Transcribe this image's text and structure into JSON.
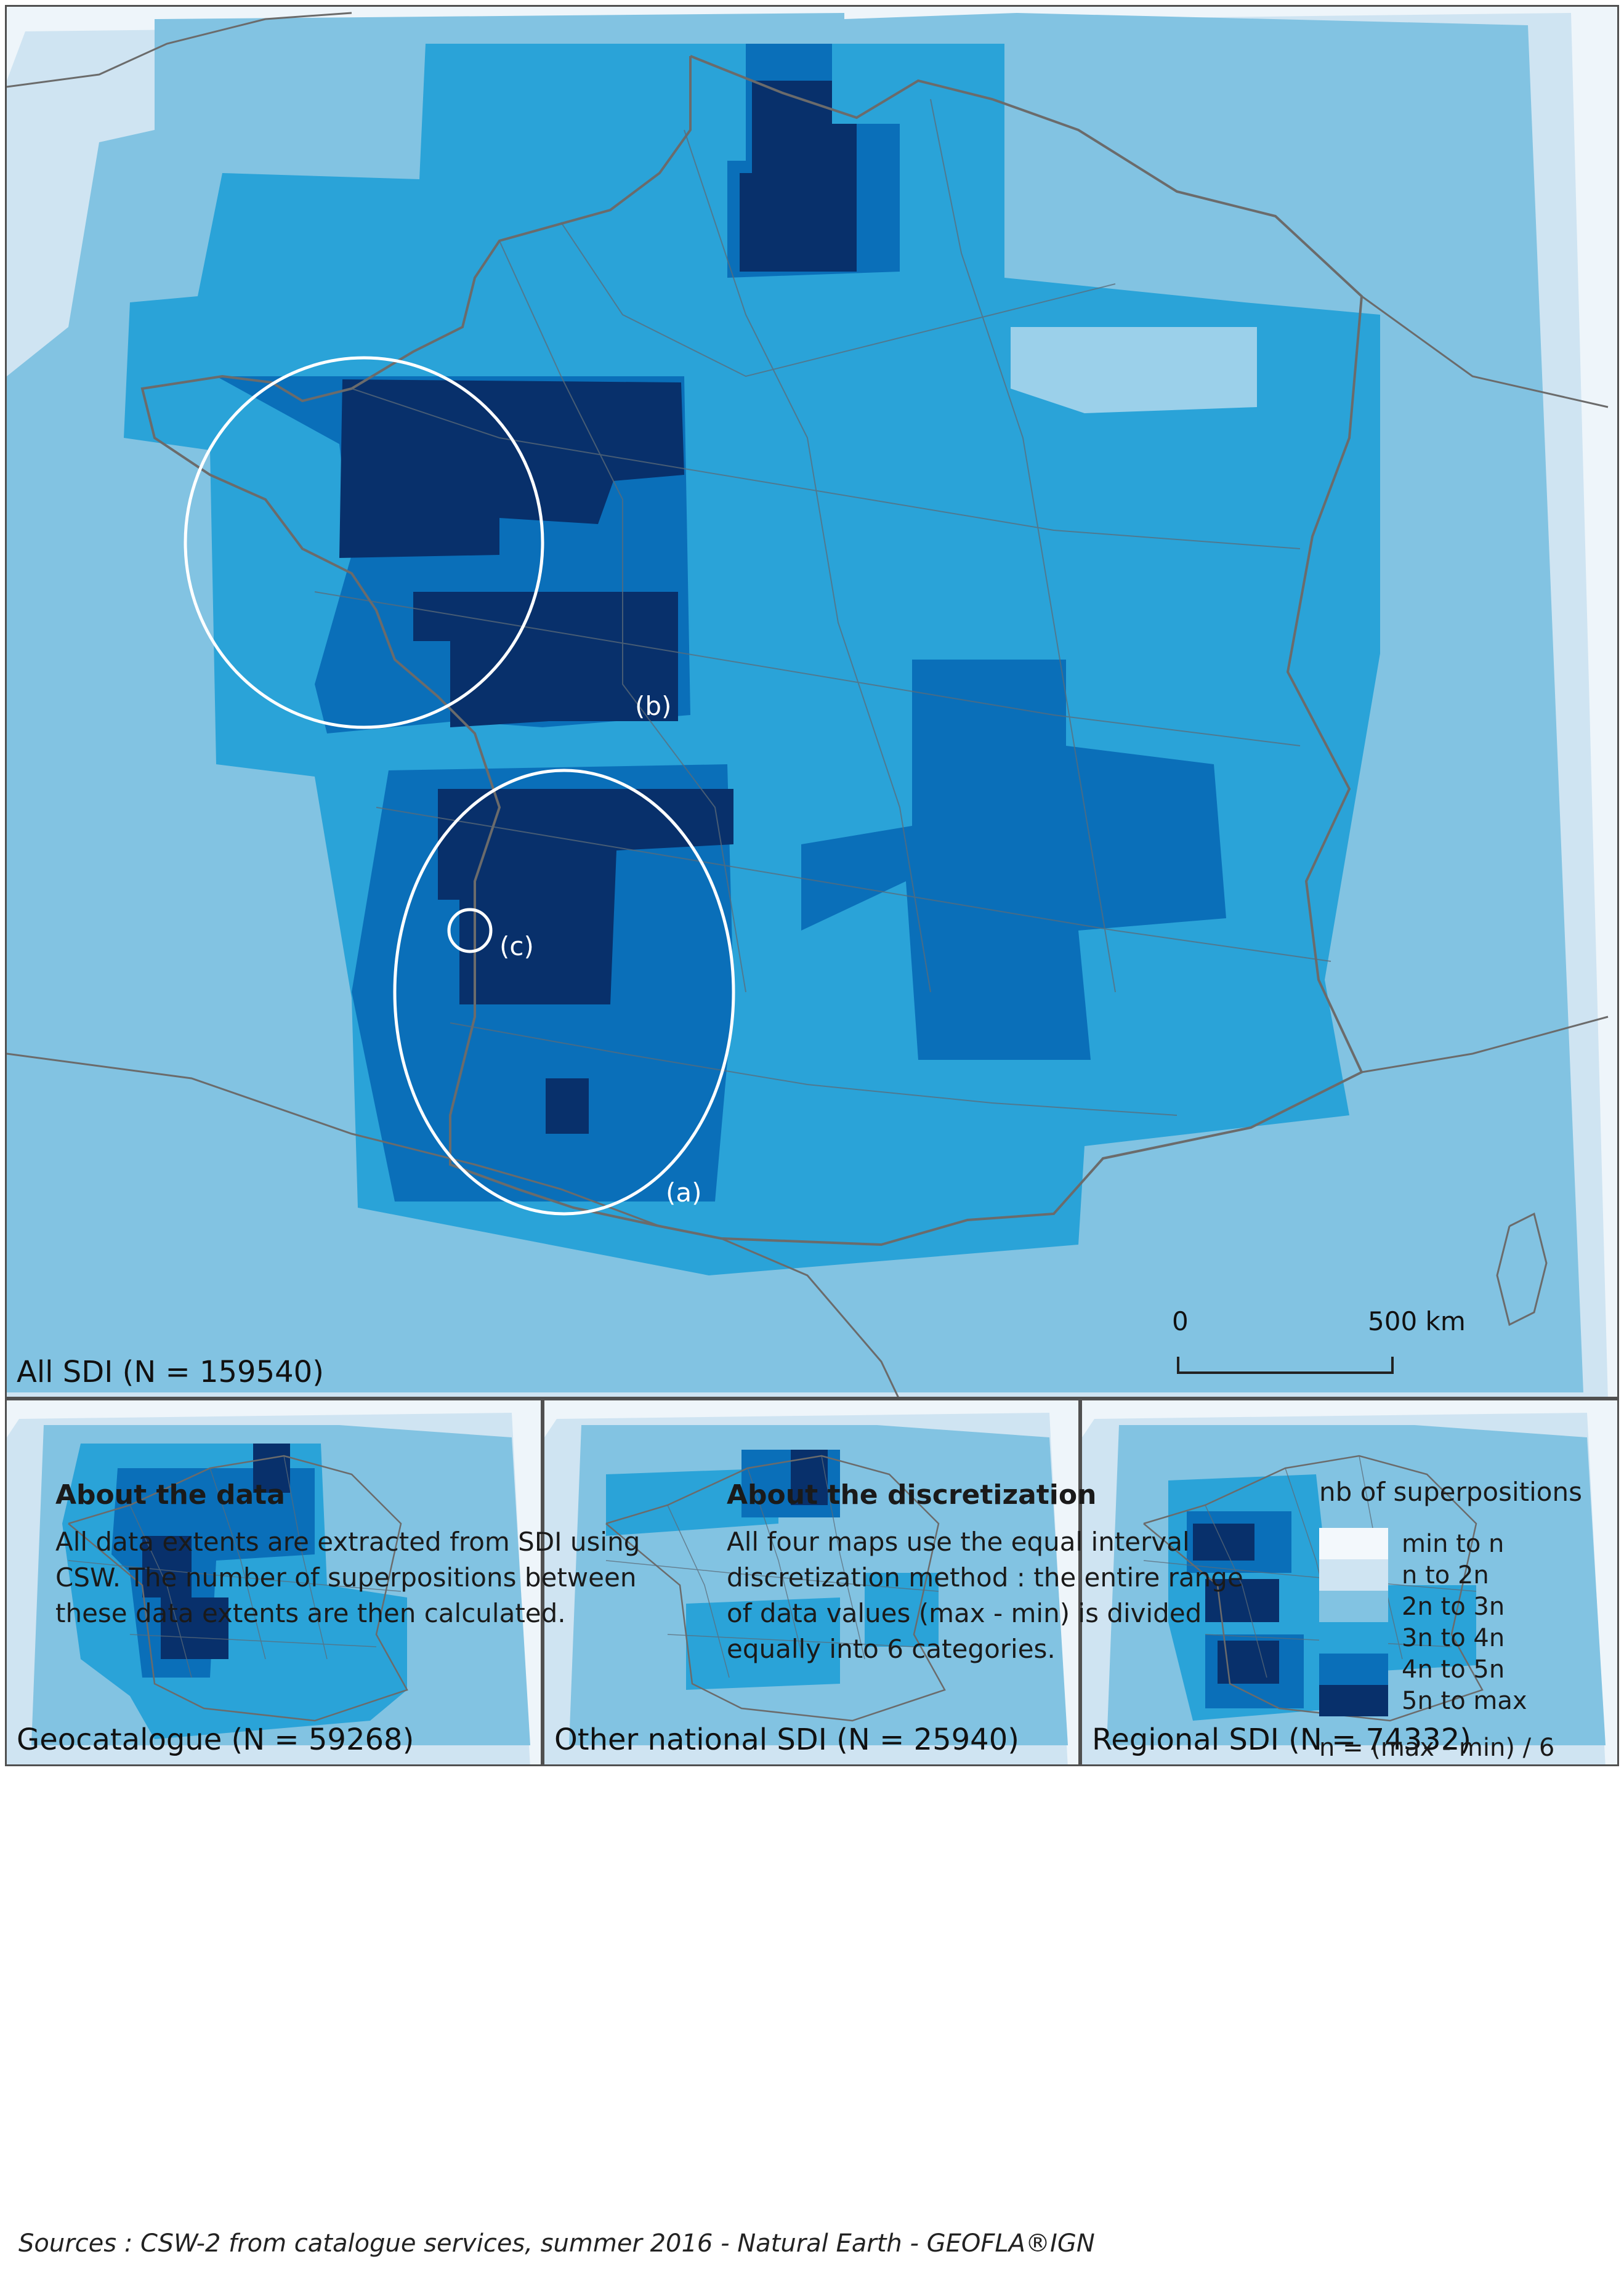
{
  "panels": {
    "main": {
      "label": "All SDI (N = 159540)"
    },
    "geocatalogue": {
      "label": "Geocatalogue (N = 59268)"
    },
    "other_national": {
      "label": "Other national SDI (N = 25940)"
    },
    "regional": {
      "label": "Regional SDI (N = 74332)"
    }
  },
  "annotations": {
    "a": "(a)",
    "b": "(b)",
    "c": "(c)"
  },
  "scale_bar": {
    "start": "0",
    "end": "500  km"
  },
  "about_data": {
    "title": "About the data",
    "lines": [
      "All data extents are extracted from SDI using",
      "CSW. The number of superpositions between",
      "these data extents are then calculated."
    ]
  },
  "about_discretization": {
    "title": "About the discretization",
    "lines": [
      "All four maps use the equal interval",
      "discretization method : the entire range",
      "of data values (max - min) is divided",
      "equally into 6 categories."
    ]
  },
  "legend": {
    "title": "nb of superpositions",
    "classes": [
      {
        "label": "min to n",
        "color": "#f3f8fc"
      },
      {
        "label": "n to 2n",
        "color": "#cfe4f2"
      },
      {
        "label": "2n to 3n",
        "color": "#82c3e2"
      },
      {
        "label": "3n to 4n",
        "color": "#2aa3d8"
      },
      {
        "label": "4n to 5n",
        "color": "#0a6fb9"
      },
      {
        "label": "5n to max",
        "color": "#08306b"
      }
    ],
    "formula": "n = (max - min) / 6"
  },
  "sources": "Sources : CSW-2 from catalogue services, summer 2016 - Natural Earth - GEOFLA®IGN"
}
